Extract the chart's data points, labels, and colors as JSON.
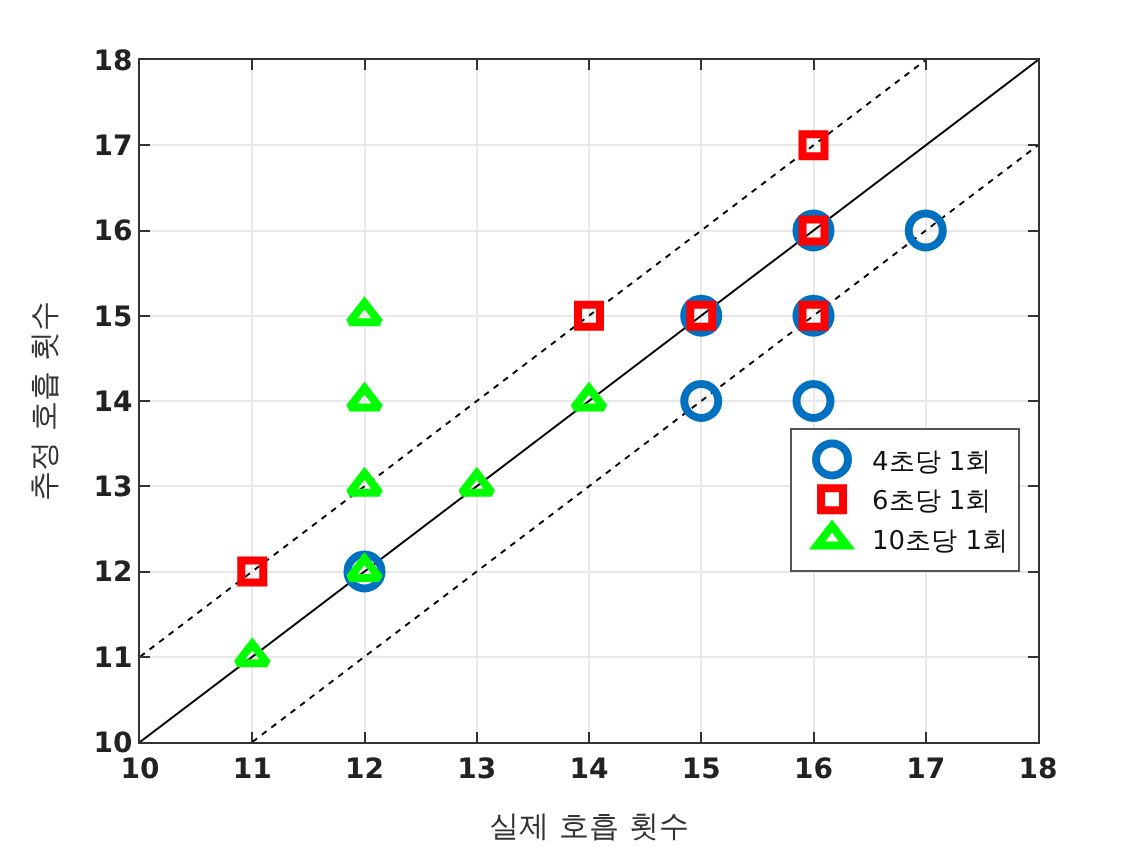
{
  "chart_data": {
    "type": "scatter",
    "xlabel": "실제 호흡 횟수",
    "ylabel": "추정 호흡 횟수",
    "xlim": [
      10,
      18
    ],
    "ylim": [
      10,
      18
    ],
    "xticks": [
      10,
      11,
      12,
      13,
      14,
      15,
      16,
      17,
      18
    ],
    "yticks": [
      10,
      11,
      12,
      13,
      14,
      15,
      16,
      17,
      18
    ],
    "grid": true,
    "legend": "bottom right",
    "series": [
      {
        "type": "line",
        "color": "#000000",
        "line_style": "solid",
        "marker": "none",
        "x": [
          10,
          18
        ],
        "values": [
          10,
          18
        ]
      },
      {
        "type": "line",
        "color": "#000000",
        "line_style": "dotted",
        "marker": "none",
        "x": [
          10,
          17
        ],
        "values": [
          11,
          18
        ]
      },
      {
        "type": "line",
        "color": "#000000",
        "line_style": "dotted",
        "marker": "none",
        "x": [
          11,
          18
        ],
        "values": [
          10,
          17
        ]
      },
      {
        "name": "4초당 1회",
        "color": "#0070c0",
        "marker": "circle",
        "x": [
          12,
          15,
          15,
          16,
          16,
          16,
          17
        ],
        "values": [
          12,
          15,
          14,
          16,
          15,
          14,
          16
        ]
      },
      {
        "name": "6초당 1회",
        "color": "#ff0000",
        "marker": "square",
        "x": [
          11,
          14,
          15,
          16,
          16,
          16
        ],
        "values": [
          12,
          15,
          15,
          17,
          16,
          15
        ]
      },
      {
        "name": "10초당 1회",
        "color": "#00ff00",
        "marker": "triangle",
        "x": [
          11,
          12,
          12,
          12,
          12,
          13,
          14
        ],
        "values": [
          11,
          15,
          14,
          13,
          12,
          13,
          14
        ]
      }
    ]
  }
}
